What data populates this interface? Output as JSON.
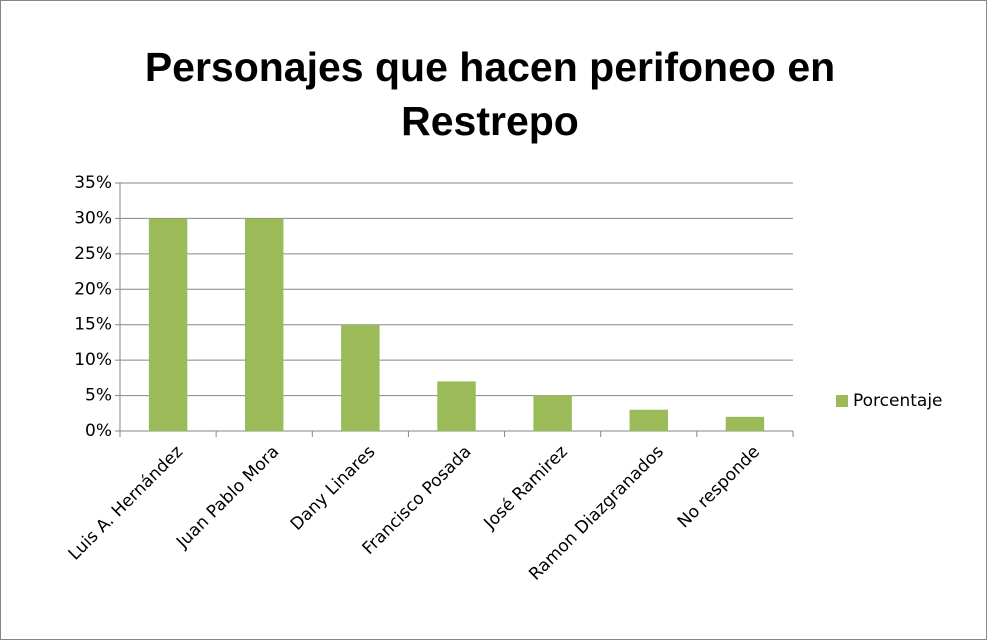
{
  "chart_data": {
    "type": "bar",
    "title": "Personajes que hacen perifoneo en Restrepo",
    "categories": [
      "Luis A. Hernández",
      "Juan Pablo Mora",
      "Dany Linares",
      "Francisco Posada",
      "José Ramirez",
      "Ramon Diazgranados",
      "No responde"
    ],
    "series": [
      {
        "name": "Porcentaje",
        "color": "#9bbb59",
        "values": [
          30,
          30,
          15,
          7,
          5,
          3,
          2
        ]
      }
    ],
    "ylim": [
      0,
      35
    ],
    "yticks": [
      {
        "value": 0,
        "label": "0%"
      },
      {
        "value": 5,
        "label": "5%"
      },
      {
        "value": 10,
        "label": "10%"
      },
      {
        "value": 15,
        "label": "15%"
      },
      {
        "value": 20,
        "label": "20%"
      },
      {
        "value": 25,
        "label": "25%"
      },
      {
        "value": 30,
        "label": "30%"
      },
      {
        "value": 35,
        "label": "35%"
      }
    ],
    "grid": true,
    "legend": "right"
  }
}
